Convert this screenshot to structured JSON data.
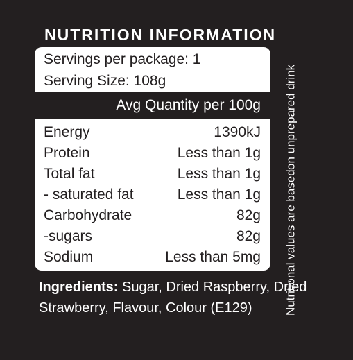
{
  "title": "NUTRITION INFORMATION",
  "servings": {
    "per_package": "Servings per package: 1",
    "size": "Serving Size: 108g"
  },
  "header": {
    "column": "Avg Quantity per 100g"
  },
  "nutrients": [
    {
      "name": "Energy",
      "value": "1390kJ"
    },
    {
      "name": "Protein",
      "value": "Less than 1g"
    },
    {
      "name": "Total fat",
      "value": "Less than 1g"
    },
    {
      "name": "- saturated fat",
      "value": "Less than 1g"
    },
    {
      "name": "Carbohydrate",
      "value": "82g"
    },
    {
      "name": "-sugars",
      "value": "82g"
    },
    {
      "name": "Sodium",
      "value": "Less than 5mg"
    }
  ],
  "side_note": {
    "line1": "Nutritional values are based",
    "line2": "on unprepared drink"
  },
  "ingredients": {
    "label": "Ingredients:",
    "text": " Sugar, Dried Raspberry, Dried Strawberry, Flavour, Colour (E129)"
  },
  "colors": {
    "background": "#231f20",
    "panel": "#ffffff",
    "text_dark": "#231f20"
  }
}
